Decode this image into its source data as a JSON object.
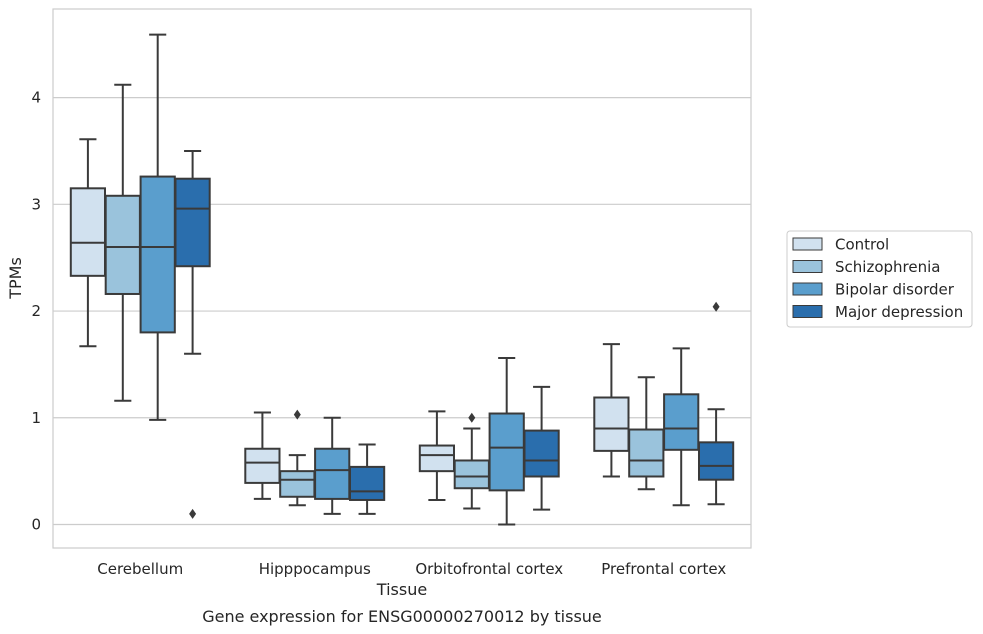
{
  "chart_data": {
    "type": "box",
    "caption": "Gene expression for ENSG00000270012 by tissue",
    "xlabel": "Tissue",
    "ylabel": "TPMs",
    "ylim": [
      -0.22,
      4.83
    ],
    "yticks": [
      "0",
      "1",
      "2",
      "3",
      "4"
    ],
    "grid": "horizontal",
    "legend_position": "right",
    "categories": [
      "Cerebellum",
      "Hipppocampus",
      "Orbitofrontal cortex",
      "Prefrontal cortex"
    ],
    "series": [
      {
        "name": "Control",
        "color": "#d1e1ef",
        "boxes": [
          {
            "whislo": 1.67,
            "q1": 2.33,
            "med": 2.64,
            "q3": 3.15,
            "whishi": 3.61,
            "fliers": []
          },
          {
            "whislo": 0.24,
            "q1": 0.39,
            "med": 0.58,
            "q3": 0.71,
            "whishi": 1.05,
            "fliers": []
          },
          {
            "whislo": 0.23,
            "q1": 0.5,
            "med": 0.65,
            "q3": 0.74,
            "whishi": 1.06,
            "fliers": []
          },
          {
            "whislo": 0.45,
            "q1": 0.69,
            "med": 0.9,
            "q3": 1.19,
            "whishi": 1.69,
            "fliers": []
          }
        ]
      },
      {
        "name": "Schizophrenia",
        "color": "#9ac3dc",
        "boxes": [
          {
            "whislo": 1.16,
            "q1": 2.16,
            "med": 2.6,
            "q3": 3.08,
            "whishi": 4.12,
            "fliers": []
          },
          {
            "whislo": 0.18,
            "q1": 0.26,
            "med": 0.42,
            "q3": 0.5,
            "whishi": 0.65,
            "fliers": [
              1.03
            ]
          },
          {
            "whislo": 0.15,
            "q1": 0.34,
            "med": 0.45,
            "q3": 0.6,
            "whishi": 0.9,
            "fliers": [
              1.0
            ]
          },
          {
            "whislo": 0.33,
            "q1": 0.45,
            "med": 0.6,
            "q3": 0.89,
            "whishi": 1.38,
            "fliers": []
          }
        ]
      },
      {
        "name": "Bipolar disorder",
        "color": "#5a9ecd",
        "boxes": [
          {
            "whislo": 0.98,
            "q1": 1.8,
            "med": 2.6,
            "q3": 3.26,
            "whishi": 4.59,
            "fliers": []
          },
          {
            "whislo": 0.1,
            "q1": 0.24,
            "med": 0.51,
            "q3": 0.71,
            "whishi": 1.0,
            "fliers": []
          },
          {
            "whislo": 0.0,
            "q1": 0.32,
            "med": 0.72,
            "q3": 1.04,
            "whishi": 1.56,
            "fliers": []
          },
          {
            "whislo": 0.18,
            "q1": 0.7,
            "med": 0.9,
            "q3": 1.22,
            "whishi": 1.65,
            "fliers": []
          }
        ]
      },
      {
        "name": "Major depression",
        "color": "#2a6ead",
        "boxes": [
          {
            "whislo": 1.6,
            "q1": 2.42,
            "med": 2.96,
            "q3": 3.24,
            "whishi": 3.5,
            "fliers": [
              0.1
            ]
          },
          {
            "whislo": 0.1,
            "q1": 0.23,
            "med": 0.31,
            "q3": 0.54,
            "whishi": 0.75,
            "fliers": []
          },
          {
            "whislo": 0.14,
            "q1": 0.45,
            "med": 0.6,
            "q3": 0.88,
            "whishi": 1.29,
            "fliers": []
          },
          {
            "whislo": 0.19,
            "q1": 0.42,
            "med": 0.55,
            "q3": 0.77,
            "whishi": 1.08,
            "fliers": [
              2.04
            ]
          }
        ]
      }
    ]
  }
}
